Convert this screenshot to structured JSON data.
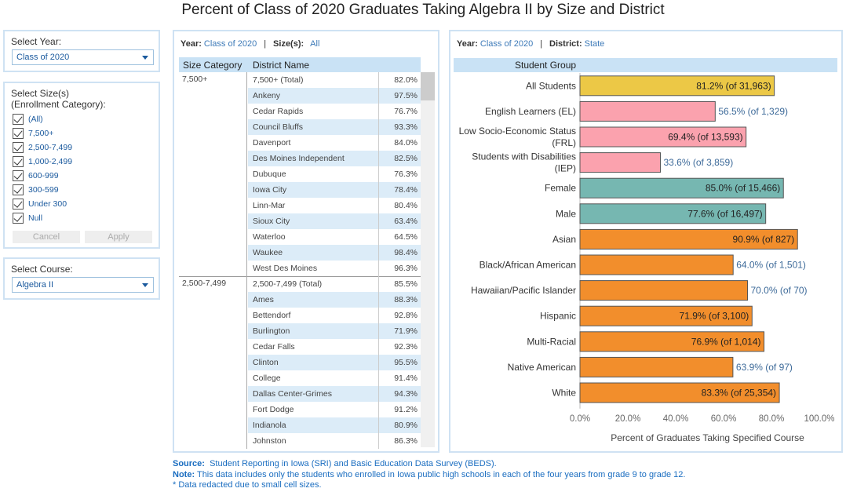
{
  "title": "Percent of Class of 2020 Graduates Taking Algebra II by Size and District",
  "filters": {
    "year_label": "Select Year:",
    "year_value": "Class of 2020",
    "size_label_line1": "Select Size(s)",
    "size_label_line2": "(Enrollment Category):",
    "size_options": [
      "(All)",
      "7,500+",
      "2,500-7,499",
      "1,000-2,499",
      "600-999",
      "300-599",
      "Under 300",
      "Null"
    ],
    "cancel_label": "Cancel",
    "apply_label": "Apply",
    "course_label": "Select Course:",
    "course_value": "Algebra II"
  },
  "table": {
    "year_key": "Year:",
    "year_val": "Class of 2020",
    "size_key": "Size(s):",
    "size_val": "All",
    "sep": "|",
    "col_category": "Size Category",
    "col_district": "District Name",
    "groups": [
      {
        "category": "7,500+",
        "rows": [
          [
            "7,500+ (Total)",
            "82.0%"
          ],
          [
            "Ankeny",
            "97.5%"
          ],
          [
            "Cedar Rapids",
            "76.7%"
          ],
          [
            "Council Bluffs",
            "93.3%"
          ],
          [
            "Davenport",
            "84.0%"
          ],
          [
            "Des Moines Independent",
            "82.5%"
          ],
          [
            "Dubuque",
            "76.3%"
          ],
          [
            "Iowa City",
            "78.4%"
          ],
          [
            "Linn-Mar",
            "80.4%"
          ],
          [
            "Sioux City",
            "63.4%"
          ],
          [
            "Waterloo",
            "64.5%"
          ],
          [
            "Waukee",
            "98.4%"
          ],
          [
            "West Des Moines",
            "96.3%"
          ]
        ]
      },
      {
        "category": "2,500-7,499",
        "rows": [
          [
            "2,500-7,499 (Total)",
            "85.5%"
          ],
          [
            "Ames",
            "88.3%"
          ],
          [
            "Bettendorf",
            "92.8%"
          ],
          [
            "Burlington",
            "71.9%"
          ],
          [
            "Cedar Falls",
            "92.3%"
          ],
          [
            "Clinton",
            "95.5%"
          ],
          [
            "College",
            "91.4%"
          ],
          [
            "Dallas Center-Grimes",
            "94.3%"
          ],
          [
            "Fort Dodge",
            "91.2%"
          ],
          [
            "Indianola",
            "80.9%"
          ],
          [
            "Johnston",
            "86.3%"
          ]
        ]
      }
    ]
  },
  "chart_header": {
    "year_key": "Year:",
    "year_val": "Class of 2020",
    "district_key": "District:",
    "district_val": "State",
    "sep": "|",
    "group_col": "Student Group"
  },
  "chart_data": {
    "type": "bar",
    "orientation": "horizontal",
    "categories": [
      "All Students",
      "English Learners (EL)",
      "Low Socio-Economic Status (FRL)",
      "Students with Disabilities (IEP)",
      "Female",
      "Male",
      "Asian",
      "Black/African American",
      "Hawaiian/Pacific Islander",
      "Hispanic",
      "Multi-Racial",
      "Native American",
      "White"
    ],
    "category_lines": [
      [
        "All Students"
      ],
      [
        "English Learners (EL)"
      ],
      [
        "Low Socio-Economic Status",
        "(FRL)"
      ],
      [
        "Students with Disabilities",
        "(IEP)"
      ],
      [
        "Female"
      ],
      [
        "Male"
      ],
      [
        "Asian"
      ],
      [
        "Black/African American"
      ],
      [
        "Hawaiian/Pacific Islander"
      ],
      [
        "Hispanic"
      ],
      [
        "Multi-Racial"
      ],
      [
        "Native American"
      ],
      [
        "White"
      ]
    ],
    "values": [
      81.2,
      56.5,
      69.4,
      33.6,
      85.0,
      77.6,
      90.9,
      64.0,
      70.0,
      71.9,
      76.9,
      63.9,
      83.3
    ],
    "labels": [
      "81.2% (of 31,963)",
      "56.5% (of 1,329)",
      "69.4% (of 13,593)",
      "33.6% (of 3,859)",
      "85.0% (of 15,466)",
      "77.6% (of 16,497)",
      "90.9% (of 827)",
      "64.0% (of 1,501)",
      "70.0% (of 70)",
      "71.9% (of 3,100)",
      "76.9% (of 1,014)",
      "63.9% (of 97)",
      "83.3% (of 25,354)"
    ],
    "label_inside": [
      true,
      false,
      true,
      false,
      true,
      true,
      true,
      false,
      false,
      true,
      true,
      false,
      true
    ],
    "colors": [
      "#ecc846",
      "#fba2ae",
      "#fba2ae",
      "#fba2ae",
      "#76b7b1",
      "#76b7b1",
      "#f28e2c",
      "#f28e2c",
      "#f28e2c",
      "#f28e2c",
      "#f28e2c",
      "#f28e2c",
      "#f28e2c"
    ],
    "xlim": [
      0,
      100
    ],
    "ticks": [
      "0.0%",
      "20.0%",
      "40.0%",
      "60.0%",
      "80.0%",
      "100.0%"
    ],
    "tick_values": [
      0,
      20,
      40,
      60,
      80,
      100
    ],
    "xlabel": "Percent of Graduates Taking Specified Course"
  },
  "footer": {
    "source_key": "Source:",
    "source_text": "Student Reporting in Iowa (SRI) and Basic Education Data Survey (BEDS).",
    "note_key": "Note:",
    "note_text": "This data includes only the students who enrolled in Iowa public high schools in each of the four years from grade 9 to grade 12.",
    "redacted_text": "* Data redacted due to small cell sizes."
  }
}
